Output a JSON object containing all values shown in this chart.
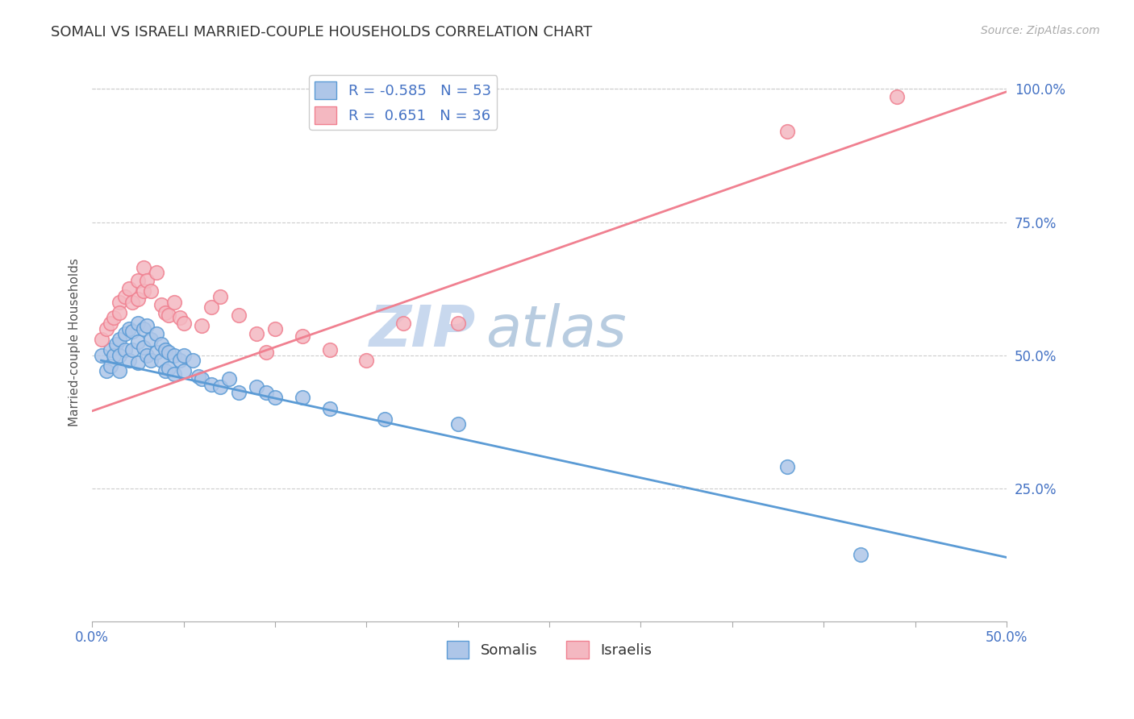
{
  "title": "SOMALI VS ISRAELI MARRIED-COUPLE HOUSEHOLDS CORRELATION CHART",
  "source": "Source: ZipAtlas.com",
  "ylabel": "Married-couple Households",
  "xlabel_somalis": "Somalis",
  "xlabel_israelis": "Israelis",
  "xlim": [
    0.0,
    0.5
  ],
  "ylim": [
    0.0,
    1.05
  ],
  "x_ticks": [
    0.0,
    0.05,
    0.1,
    0.15,
    0.2,
    0.25,
    0.3,
    0.35,
    0.4,
    0.45,
    0.5
  ],
  "x_tick_labels": [
    "0.0%",
    "",
    "",
    "",
    "",
    "",
    "",
    "",
    "",
    "",
    "50.0%"
  ],
  "y_ticks_right": [
    0.25,
    0.5,
    0.75,
    1.0
  ],
  "y_tick_labels_right": [
    "25.0%",
    "50.0%",
    "75.0%",
    "100.0%"
  ],
  "somali_color": "#aec6e8",
  "israeli_color": "#f4b8c1",
  "somali_line_color": "#5b9bd5",
  "israeli_line_color": "#f08090",
  "R_somali": -0.585,
  "N_somali": 53,
  "R_israeli": 0.651,
  "N_israeli": 36,
  "somali_x": [
    0.005,
    0.008,
    0.01,
    0.01,
    0.012,
    0.013,
    0.015,
    0.015,
    0.015,
    0.018,
    0.018,
    0.02,
    0.02,
    0.022,
    0.022,
    0.025,
    0.025,
    0.025,
    0.028,
    0.028,
    0.03,
    0.03,
    0.032,
    0.032,
    0.035,
    0.035,
    0.038,
    0.038,
    0.04,
    0.04,
    0.042,
    0.042,
    0.045,
    0.045,
    0.048,
    0.05,
    0.05,
    0.055,
    0.058,
    0.06,
    0.065,
    0.07,
    0.075,
    0.08,
    0.09,
    0.095,
    0.1,
    0.115,
    0.13,
    0.16,
    0.2,
    0.38,
    0.42
  ],
  "somali_y": [
    0.5,
    0.47,
    0.51,
    0.48,
    0.5,
    0.52,
    0.53,
    0.5,
    0.47,
    0.54,
    0.51,
    0.55,
    0.49,
    0.545,
    0.51,
    0.56,
    0.525,
    0.485,
    0.55,
    0.515,
    0.555,
    0.5,
    0.53,
    0.49,
    0.54,
    0.505,
    0.52,
    0.49,
    0.51,
    0.47,
    0.505,
    0.475,
    0.5,
    0.465,
    0.49,
    0.5,
    0.47,
    0.49,
    0.46,
    0.455,
    0.445,
    0.44,
    0.455,
    0.43,
    0.44,
    0.43,
    0.42,
    0.42,
    0.4,
    0.38,
    0.37,
    0.29,
    0.125
  ],
  "israeli_x": [
    0.005,
    0.008,
    0.01,
    0.012,
    0.015,
    0.015,
    0.018,
    0.02,
    0.022,
    0.025,
    0.025,
    0.028,
    0.028,
    0.03,
    0.032,
    0.035,
    0.038,
    0.04,
    0.042,
    0.045,
    0.048,
    0.05,
    0.06,
    0.065,
    0.07,
    0.08,
    0.09,
    0.095,
    0.1,
    0.115,
    0.13,
    0.15,
    0.17,
    0.2,
    0.38,
    0.44
  ],
  "israeli_y": [
    0.53,
    0.55,
    0.56,
    0.57,
    0.6,
    0.58,
    0.61,
    0.625,
    0.6,
    0.64,
    0.605,
    0.665,
    0.62,
    0.64,
    0.62,
    0.655,
    0.595,
    0.58,
    0.575,
    0.6,
    0.57,
    0.56,
    0.555,
    0.59,
    0.61,
    0.575,
    0.54,
    0.505,
    0.55,
    0.535,
    0.51,
    0.49,
    0.56,
    0.56,
    0.92,
    0.985
  ],
  "somali_line_x": [
    0.005,
    0.5
  ],
  "somali_line_y": [
    0.49,
    0.12
  ],
  "israeli_line_x": [
    0.0,
    0.5
  ],
  "israeli_line_y": [
    0.395,
    0.995
  ],
  "background_color": "#ffffff",
  "grid_color": "#cccccc",
  "legend_text_color": "#4472c4",
  "watermark_zip_color": "#c8d8ee",
  "watermark_atlas_color": "#b8cce0",
  "watermark_fontsize": 52
}
